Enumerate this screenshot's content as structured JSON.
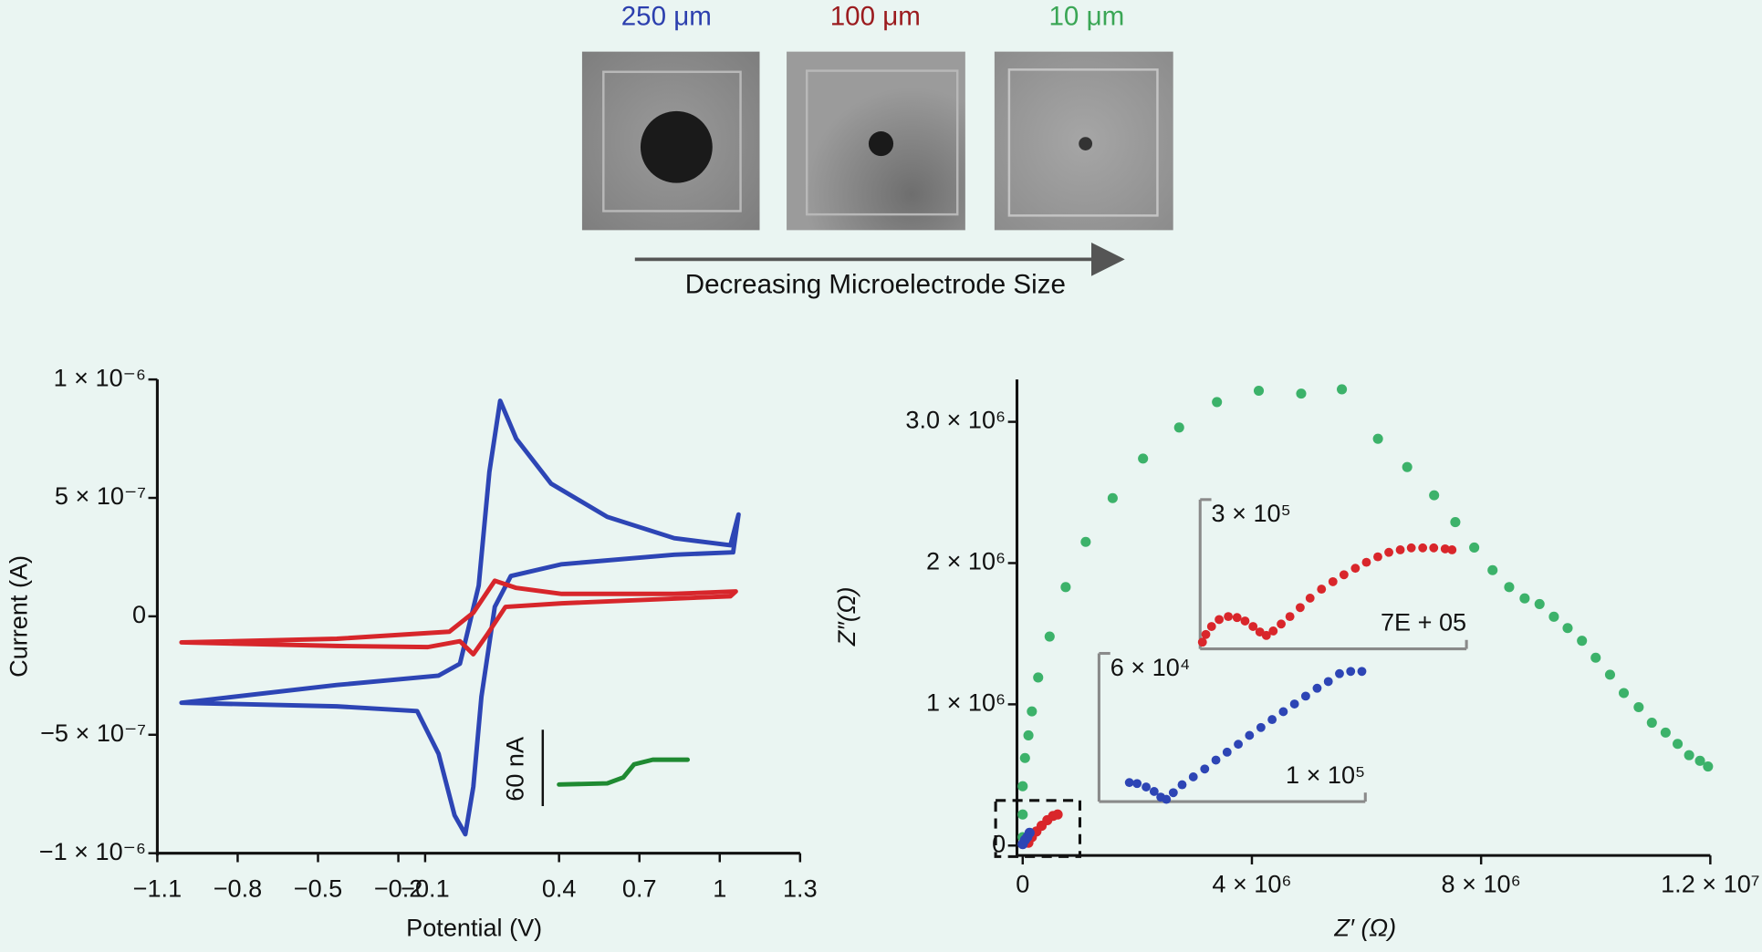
{
  "header": {
    "labels": [
      "250 μm",
      "100 μm",
      "10 μm"
    ],
    "arrow_label": "Decreasing Microelectrode Size"
  },
  "chart_data": [
    {
      "type": "line",
      "x_label": "Potential (V)",
      "y_label": "Current (A)",
      "xlim": [
        -1.1,
        1.3
      ],
      "ylim": [
        -1e-06,
        1e-06
      ],
      "xticks": [
        {
          "value": -1.1,
          "label": "−1.1"
        },
        {
          "value": -0.8,
          "label": "−0.8"
        },
        {
          "value": -0.5,
          "label": "−0.5"
        },
        {
          "value": -0.2,
          "label": "−0.2"
        },
        {
          "value": -0.1,
          "label": "−0.1"
        },
        0.4,
        0.7,
        1,
        1.3
      ],
      "yticks": [
        {
          "value": -1e-06,
          "label": "−1 × 10⁻⁶"
        },
        {
          "value": -5e-07,
          "label": "−5 × 10⁻⁷"
        },
        0,
        {
          "value": 5e-07,
          "label": "5 × 10⁻⁷"
        },
        {
          "value": 1e-06,
          "label": "1 × 10⁻⁶"
        }
      ],
      "scale_bar_label": "60 nA",
      "series": [
        {
          "color": "#2d45b5",
          "x": [
            -1.01,
            -0.43,
            -0.05,
            0.03,
            0.1,
            0.14,
            0.18,
            0.24,
            0.37,
            0.58,
            0.83,
            1.04,
            1.07,
            1.05,
            0.83,
            0.41,
            0.22,
            0.16,
            0.11,
            0.08,
            0.05,
            0.01,
            -0.05,
            -0.13,
            -0.43,
            -1.01
          ],
          "values": [
            -3.65e-07,
            -2.9e-07,
            -2.5e-07,
            -2e-07,
            1.3e-07,
            6.1e-07,
            9.1e-07,
            7.5e-07,
            5.6e-07,
            4.2e-07,
            3.3e-07,
            3e-07,
            4.3e-07,
            2.7e-07,
            2.6e-07,
            2.2e-07,
            1.7e-07,
            4e-08,
            -3.4e-07,
            -7.2e-07,
            -9.2e-07,
            -8.4e-07,
            -5.8e-07,
            -4e-07,
            -3.8e-07,
            -3.65e-07
          ]
        },
        {
          "color": "#d7262b",
          "x": [
            -1.01,
            -0.43,
            -0.01,
            0.08,
            0.16,
            0.24,
            0.41,
            0.83,
            1.06,
            1.04,
            0.41,
            0.2,
            0.13,
            0.08,
            0.03,
            -0.09,
            -0.43,
            -1.01
          ],
          "values": [
            -1.1e-07,
            -9.5e-08,
            -6.5e-08,
            1.5e-08,
            1.5e-07,
            1.2e-07,
            9.5e-08,
            9.5e-08,
            1.05e-07,
            8.5e-08,
            5.5e-08,
            4e-08,
            -8e-08,
            -1.6e-07,
            -1.05e-07,
            -1.3e-07,
            -1.25e-07,
            -1.1e-07
          ]
        },
        {
          "color": "#1f8a32",
          "x": [
            0.4,
            0.58,
            0.64,
            0.68,
            0.75,
            0.88
          ],
          "values": [
            -7.1e-07,
            -7.05e-07,
            -6.8e-07,
            -6.25e-07,
            -6.05e-07,
            -6.05e-07
          ]
        }
      ]
    },
    {
      "type": "scatter",
      "x_label": "Z′ (Ω)",
      "y_label": "Z″(Ω)",
      "xlim": [
        -100000.0,
        12000000.0
      ],
      "ylim": [
        -70000.0,
        3300000.0
      ],
      "xticks": [
        0,
        {
          "value": 4000000.0,
          "label": "4 × 10⁶"
        },
        {
          "value": 8000000.0,
          "label": "8 × 10⁶"
        },
        {
          "value": 12000000.0,
          "label": "1.2 × 10⁷"
        }
      ],
      "yticks": [
        0,
        {
          "value": 1000000.0,
          "label": "1 × 10⁶"
        },
        {
          "value": 2000000.0,
          "label": "2 × 10⁶"
        },
        {
          "value": 3000000.0,
          "label": "3.0 × 10⁶"
        }
      ],
      "series": [
        {
          "color": "#3cb26a",
          "x": [
            0,
            0,
            0,
            40000.0,
            100000.0,
            160000.0,
            270000.0,
            470000.0,
            750000.0,
            1100000.0,
            1570000.0,
            2100000.0,
            2730000.0,
            3390000.0,
            4120000.0,
            4860000.0,
            5570000.0,
            6200000.0,
            6710000.0,
            7180000.0,
            7550000.0,
            7880000.0,
            8200000.0,
            8490000.0,
            8760000.0,
            9020000.0,
            9270000.0,
            9510000.0,
            9760000.0,
            10000000.0,
            10250000.0,
            10490000.0,
            10750000.0,
            10980000.0,
            11220000.0,
            11430000.0,
            11630000.0,
            11820000.0,
            11960000.0
          ],
          "values": [
            60000.0,
            220000.0,
            420000.0,
            620000.0,
            780000.0,
            950000.0,
            1190000.0,
            1480000.0,
            1830000.0,
            2150000.0,
            2460000.0,
            2740000.0,
            2960000.0,
            3140000.0,
            3220000.0,
            3200000.0,
            3230000.0,
            2880000.0,
            2680000.0,
            2480000.0,
            2290000.0,
            2110000.0,
            1950000.0,
            1830000.0,
            1750000.0,
            1710000.0,
            1620000.0,
            1540000.0,
            1450000.0,
            1330000.0,
            1210000.0,
            1080000.0,
            980000.0,
            870000.0,
            800000.0,
            720000.0,
            640000.0,
            600000.0,
            560000.0
          ]
        },
        {
          "color": "#d9262b",
          "x": [
            100000.0,
            160000.0,
            240000.0,
            330000.0,
            430000.0,
            530000.0,
            610000.0
          ],
          "values": [
            20000.0,
            60000.0,
            100000.0,
            140000.0,
            180000.0,
            210000.0,
            220000.0
          ]
        },
        {
          "color": "#2d45b5",
          "x": [
            0,
            40000.0,
            80000.0,
            120000.0
          ],
          "values": [
            10000.0,
            40000.0,
            60000.0,
            90000.0
          ]
        }
      ]
    },
    {
      "type": "scatter",
      "xlim": [
        0,
        700000.0
      ],
      "ylim": [
        0,
        300000.0
      ],
      "xticks": [
        {
          "value": 700000.0,
          "label": "7E + 05"
        }
      ],
      "yticks": [
        {
          "value": 300000.0,
          "label": "3 × 10⁵"
        }
      ],
      "series": [
        {
          "color": "#d9262b",
          "x": [
            6000.0,
            15000.0,
            30000.0,
            50000.0,
            74000.0,
            97000.0,
            118000.0,
            139000.0,
            157000.0,
            174000.0,
            192000.0,
            213000.0,
            236000.0,
            263000.0,
            289000.0,
            319000.0,
            349000.0,
            378000.0,
            408000.0,
            437000.0,
            467000.0,
            496000.0,
            526000.0,
            555000.0,
            585000.0,
            614000.0,
            644000.0,
            662000.0
          ],
          "values": [
            13500.0,
            29000.0,
            45000.0,
            59000.0,
            65000.0,
            63000.0,
            56000.0,
            45000.0,
            34000.0,
            27000.0,
            36000.0,
            50000.0,
            65000.0,
            83000.0,
            102000.0,
            120000.0,
            135000.0,
            149000.0,
            162000.0,
            174000.0,
            185000.0,
            194000.0,
            199000.0,
            203000.0,
            203000.0,
            203000.0,
            201000.0,
            199000.0
          ]
        }
      ]
    },
    {
      "type": "scatter",
      "xlim": [
        0,
        100000.0
      ],
      "ylim": [
        0,
        60000.0
      ],
      "xticks": [
        {
          "value": 100000.0,
          "label": "1 × 10⁵"
        }
      ],
      "yticks": [
        {
          "value": 60000.0,
          "label": "6 × 10⁴"
        }
      ],
      "series": [
        {
          "color": "#2d45b5",
          "x": [
            11400.0,
            14300.0,
            17700.0,
            20700.0,
            23200.0,
            25300.0,
            27900.0,
            31200.0,
            35400.0,
            39700.0,
            43900.0,
            48100.0,
            52300.0,
            56500.0,
            60800.0,
            65000.0,
            69200.0,
            73400.0,
            77600.0,
            81900.0,
            86100.0,
            90300.0,
            94500.0,
            98700.0
          ],
          "values": [
            7700.0,
            7300.0,
            5900.0,
            4100.0,
            1800.0,
            900.0,
            3600.0,
            6800.0,
            10000.0,
            13200.0,
            16800.0,
            20000.0,
            23200.0,
            26800.0,
            30000.0,
            33200.0,
            36400.0,
            39500.0,
            42700.0,
            45900.0,
            48600.0,
            51800.0,
            52700.0,
            52700.0
          ]
        }
      ]
    }
  ]
}
